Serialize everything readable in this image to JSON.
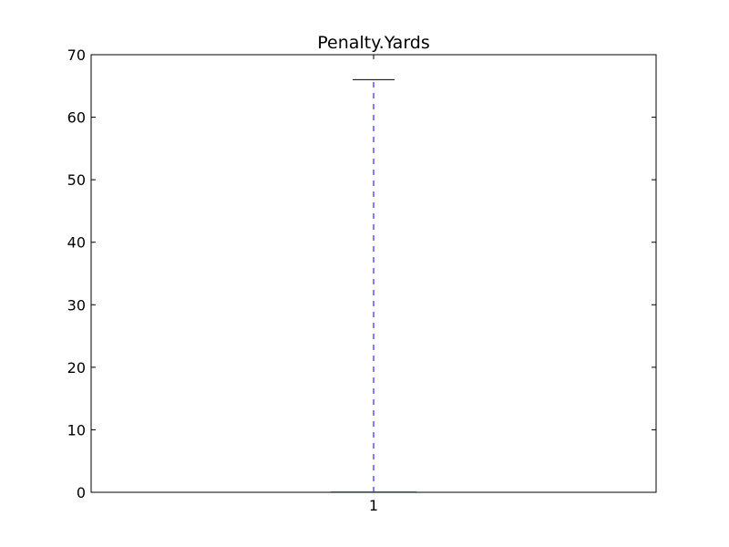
{
  "chart_data": {
    "type": "box",
    "title": "Penalty.Yards",
    "xlabel": "",
    "ylabel": "",
    "categories": [
      "1"
    ],
    "boxes": [
      {
        "category": "1",
        "whisker_low": 0,
        "q1": 0,
        "median": 0,
        "q3": 0,
        "whisker_high": 66
      }
    ],
    "ylim": [
      0,
      70
    ],
    "yticks": [
      0,
      10,
      20,
      30,
      40,
      50,
      60,
      70
    ],
    "grid": false,
    "legend": "none",
    "colors": {
      "box": "#000000",
      "median": "#ff0000",
      "whisker": "#0000ff",
      "cap": "#000000",
      "axes": "#000000"
    }
  }
}
